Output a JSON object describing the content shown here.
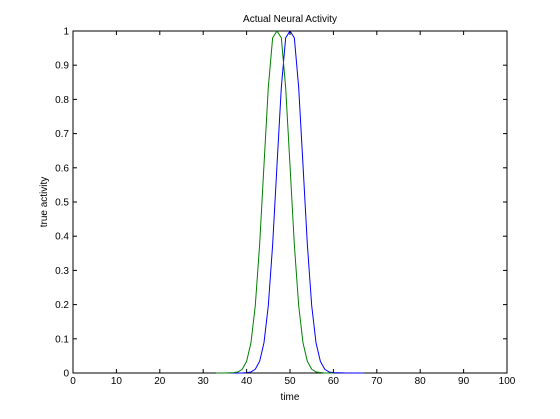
{
  "chart_data": {
    "type": "line",
    "title": "Actual Neural Activity",
    "xlabel": "time",
    "ylabel": "true activity",
    "xlim": [
      0,
      100
    ],
    "ylim": [
      0,
      1
    ],
    "xticks": [
      0,
      10,
      20,
      30,
      40,
      50,
      60,
      70,
      80,
      90,
      100
    ],
    "yticks": [
      0,
      0.1,
      0.2,
      0.3,
      0.4,
      0.5,
      0.6,
      0.7,
      0.8,
      0.9,
      1
    ],
    "xtick_labels": [
      "0",
      "10",
      "20",
      "30",
      "40",
      "50",
      "60",
      "70",
      "80",
      "90",
      "100"
    ],
    "ytick_labels": [
      "0",
      "0.1",
      "0.2",
      "0.3",
      "0.4",
      "0.5",
      "0.6",
      "0.7",
      "0.8",
      "0.9",
      "1"
    ],
    "grid": false,
    "box": true,
    "series": [
      {
        "color": "#0000ff",
        "x": [
          33,
          36,
          39,
          40,
          41,
          42,
          43,
          44,
          45,
          46,
          47,
          48,
          49,
          50,
          51,
          52,
          53,
          54,
          55,
          56,
          57,
          58,
          59,
          60,
          63,
          67
        ],
        "y": [
          0,
          0,
          0,
          0.001,
          0.003,
          0.011,
          0.034,
          0.088,
          0.197,
          0.375,
          0.607,
          0.835,
          0.98,
          1,
          0.98,
          0.835,
          0.607,
          0.375,
          0.197,
          0.088,
          0.034,
          0.011,
          0.003,
          0.001,
          0,
          0
        ]
      },
      {
        "color": "#007f00",
        "x": [
          33,
          35,
          37,
          38,
          39,
          40,
          41,
          42,
          43,
          44,
          45,
          46,
          47,
          48,
          49,
          50,
          51,
          52,
          53,
          54,
          55,
          56,
          58,
          60
        ],
        "y": [
          0,
          0,
          0.001,
          0.003,
          0.011,
          0.034,
          0.088,
          0.197,
          0.375,
          0.607,
          0.835,
          0.98,
          1,
          0.98,
          0.835,
          0.607,
          0.375,
          0.197,
          0.088,
          0.034,
          0.011,
          0.003,
          0,
          0
        ]
      }
    ]
  }
}
